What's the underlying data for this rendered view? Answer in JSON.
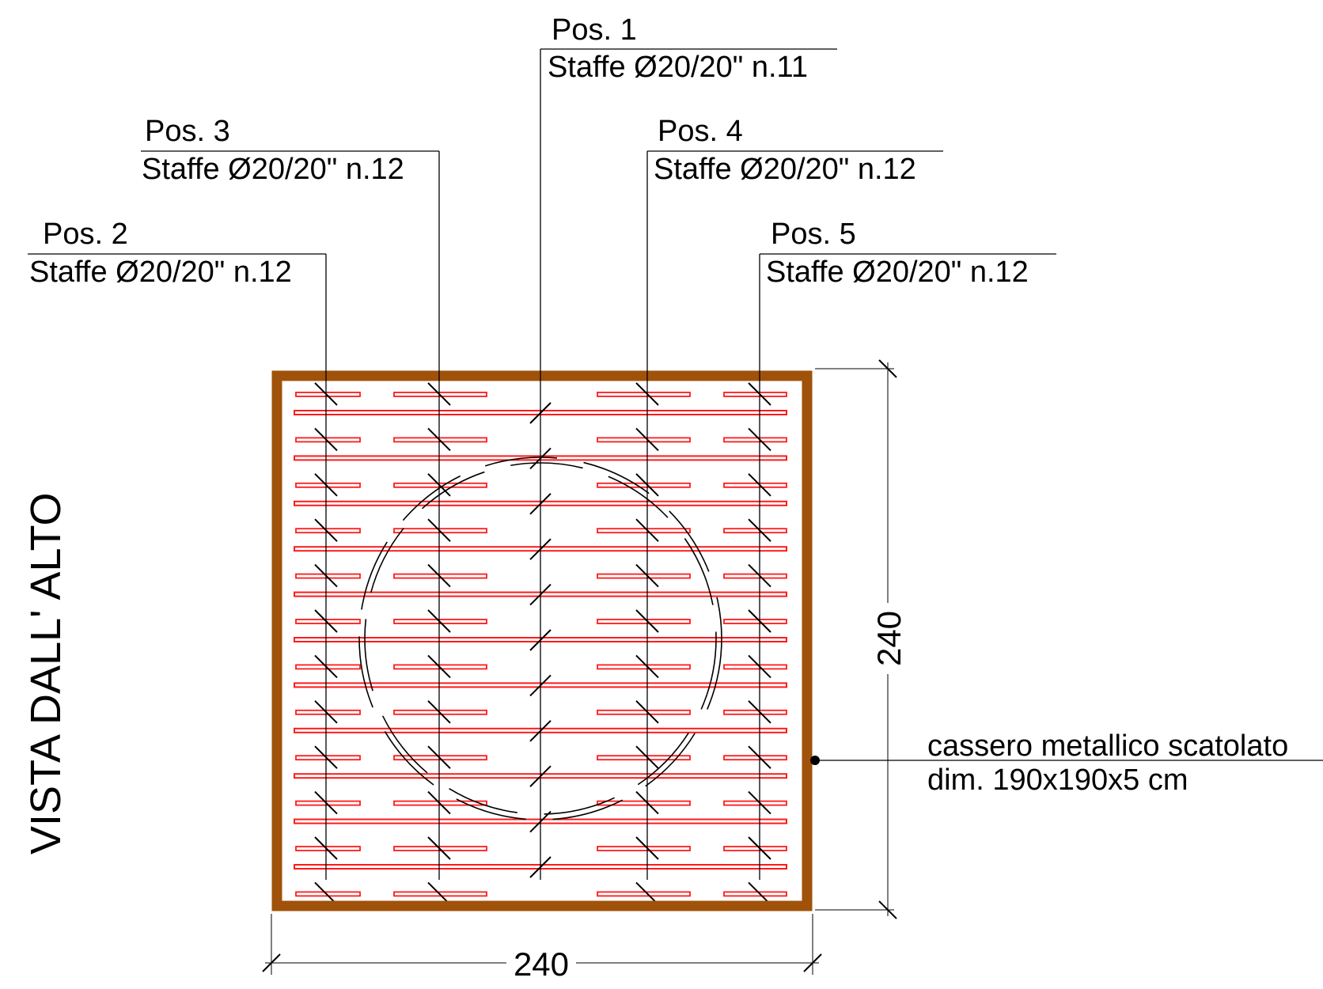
{
  "view_title": "VISTA DALL' ALTO",
  "positions": [
    {
      "id": "pos1",
      "label": "Pos. 1",
      "desc": "Staffe Ø20/20\" n.11"
    },
    {
      "id": "pos2",
      "label": "Pos. 2",
      "desc": "Staffe Ø20/20\" n.12"
    },
    {
      "id": "pos3",
      "label": "Pos. 3",
      "desc": "Staffe Ø20/20\" n.12"
    },
    {
      "id": "pos4",
      "label": "Pos. 4",
      "desc": "Staffe Ø20/20\" n.12"
    },
    {
      "id": "pos5",
      "label": "Pos. 5",
      "desc": "Staffe Ø20/20\" n.12"
    }
  ],
  "dimensions": {
    "width": "240",
    "height": "240"
  },
  "formwork_note": {
    "line1": "cassero metallico scatolato",
    "line2": "dim. 190x190x5 cm"
  },
  "colors": {
    "formwork": "#a0520a",
    "rebar": "#ff1a1a",
    "linework": "#000000"
  }
}
